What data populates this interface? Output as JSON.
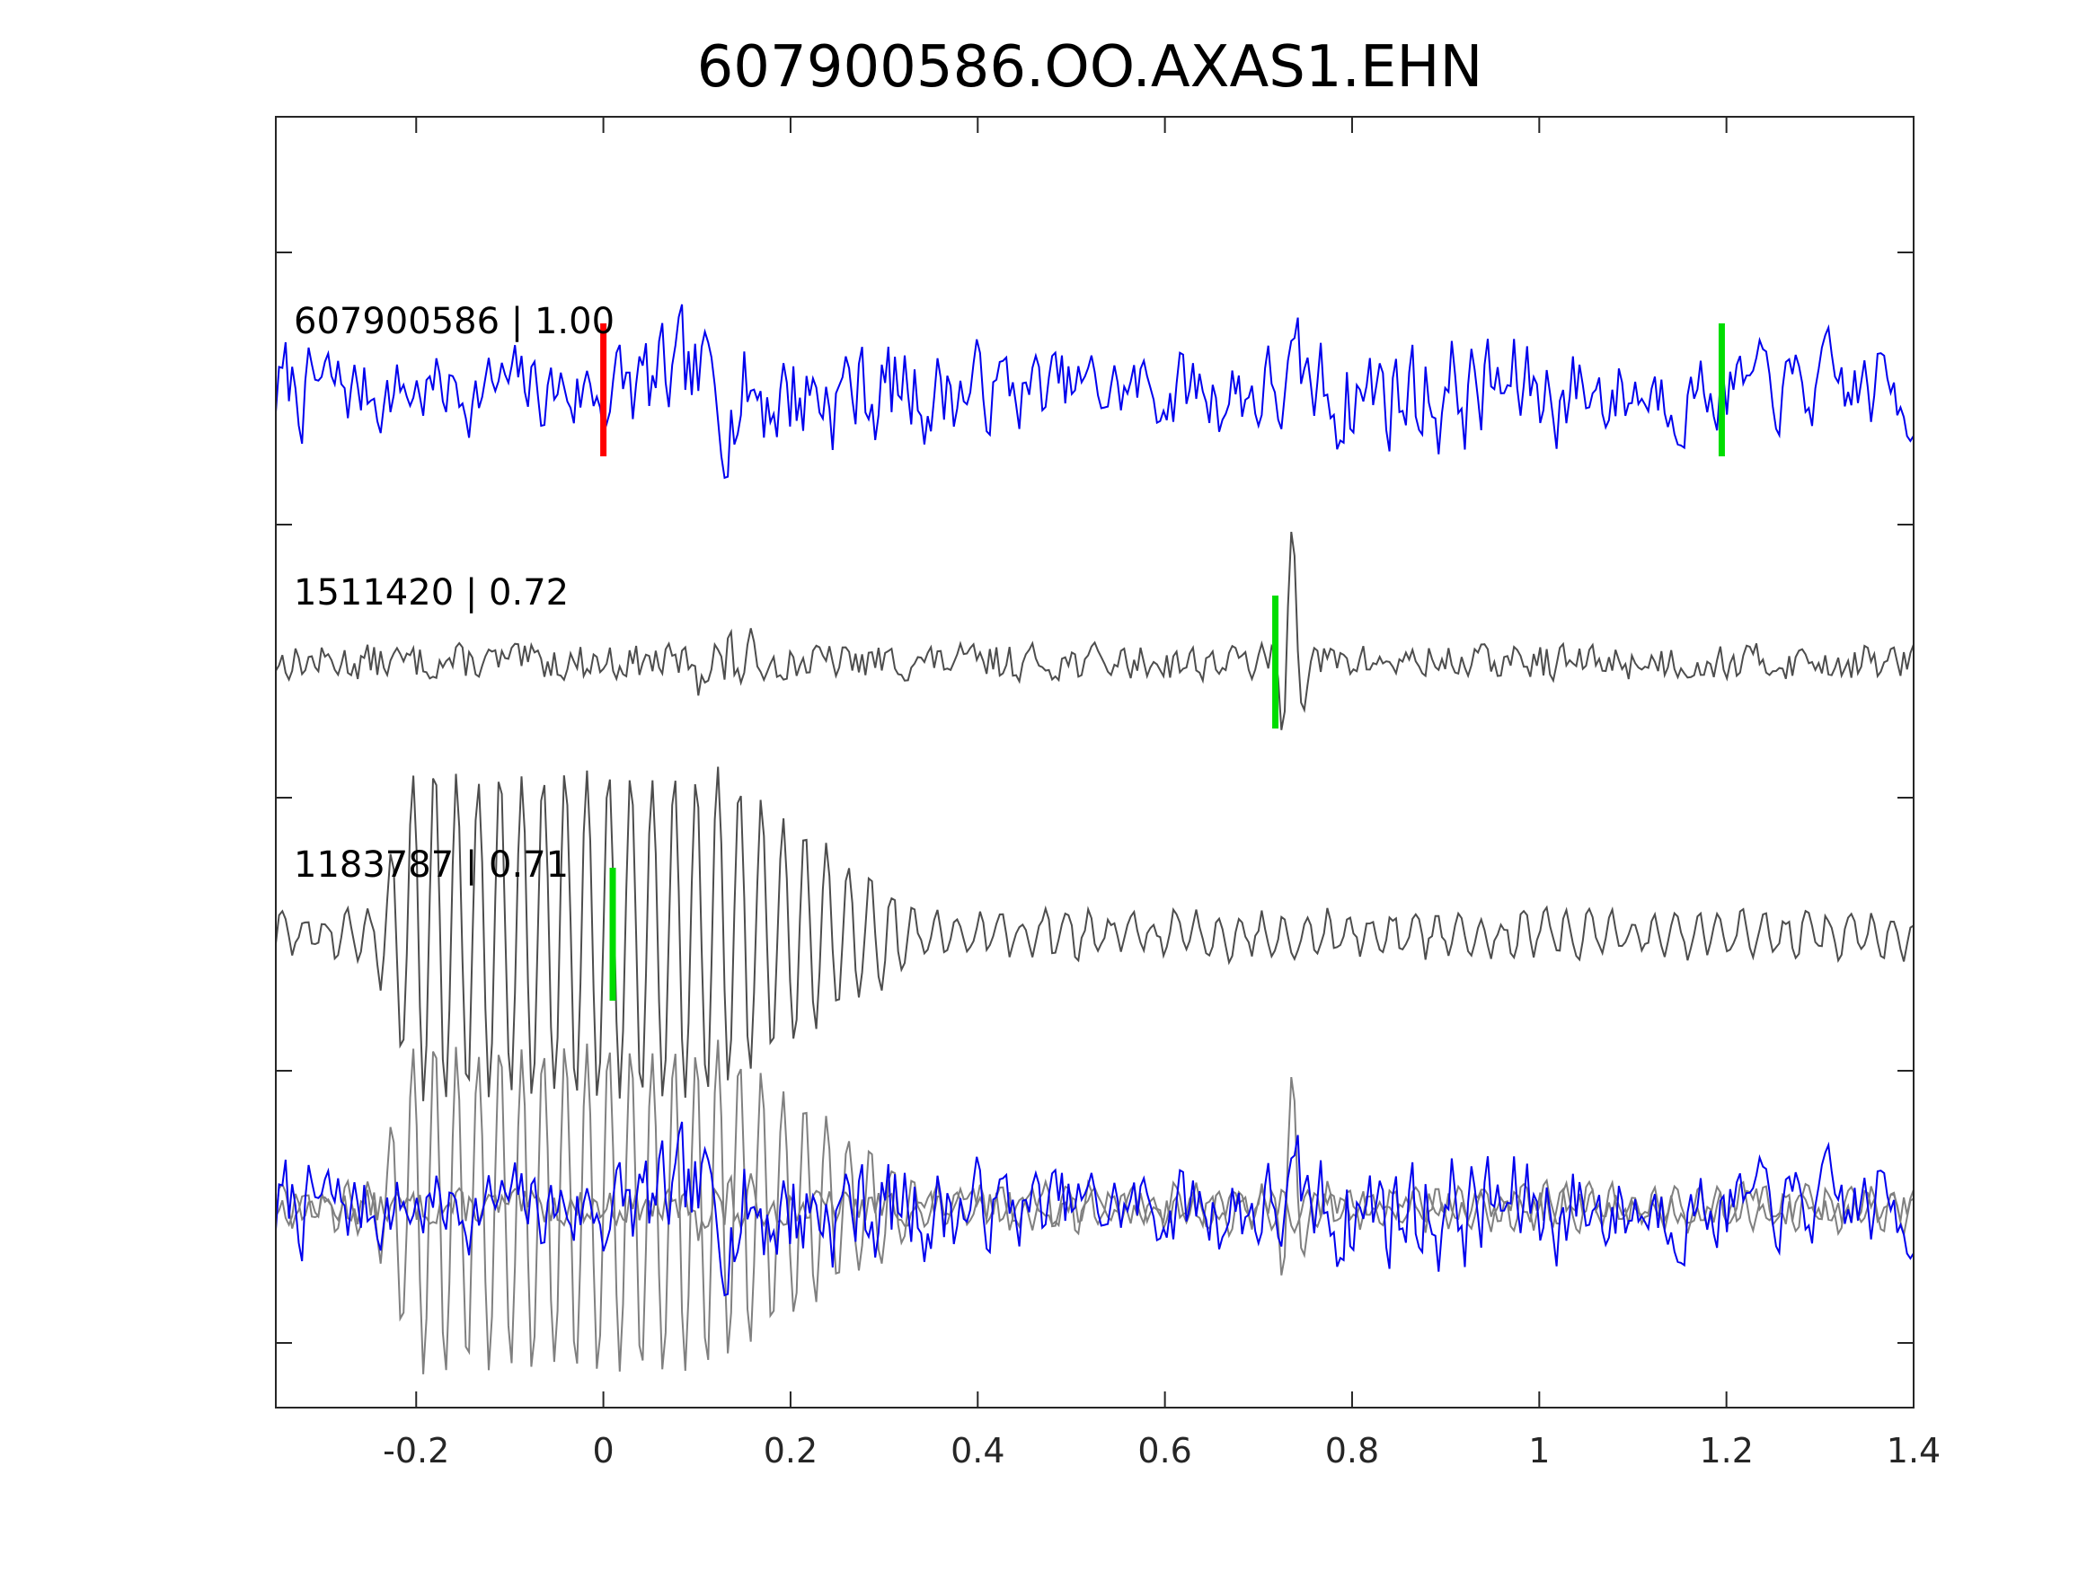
{
  "chart_data": {
    "type": "line",
    "title": "607900586.OO.AXAS1.EHN",
    "xlabel": "",
    "ylabel": "",
    "xlim": [
      -0.35,
      1.4
    ],
    "xticks": [
      -0.2,
      0,
      0.2,
      0.4,
      0.6,
      0.8,
      1,
      1.2,
      1.4
    ],
    "xtick_labels": [
      "-0.2",
      "0",
      "0.2",
      "0.4",
      "0.6",
      "0.8",
      "1",
      "1.2",
      "1.4"
    ],
    "grid": false,
    "colors": {
      "template": "#0000ee",
      "match": "#4d4d4d",
      "overlay_match": "#808080",
      "pick_red": "#ff0000",
      "pick_green": "#00dd00"
    },
    "traces": [
      {
        "event": "607900586",
        "coefficient": "1.00",
        "label": "607900586 | 1.00",
        "color": "template",
        "picks": [
          {
            "time": 0.0,
            "color": "pick_red"
          },
          {
            "time": 1.195,
            "color": "pick_green"
          }
        ]
      },
      {
        "event": "1511420",
        "coefficient": "0.72",
        "label": "1511420 | 0.72",
        "color": "match",
        "picks": [
          {
            "time": 0.718,
            "color": "pick_green"
          }
        ]
      },
      {
        "event": "1183787",
        "coefficient": "0.71",
        "label": "1183787 | 0.71",
        "color": "match",
        "picks": [
          {
            "time": 0.01,
            "color": "pick_green"
          }
        ]
      }
    ],
    "overlay": {
      "traces": [
        "607900586",
        "1511420",
        "1183787"
      ]
    }
  }
}
